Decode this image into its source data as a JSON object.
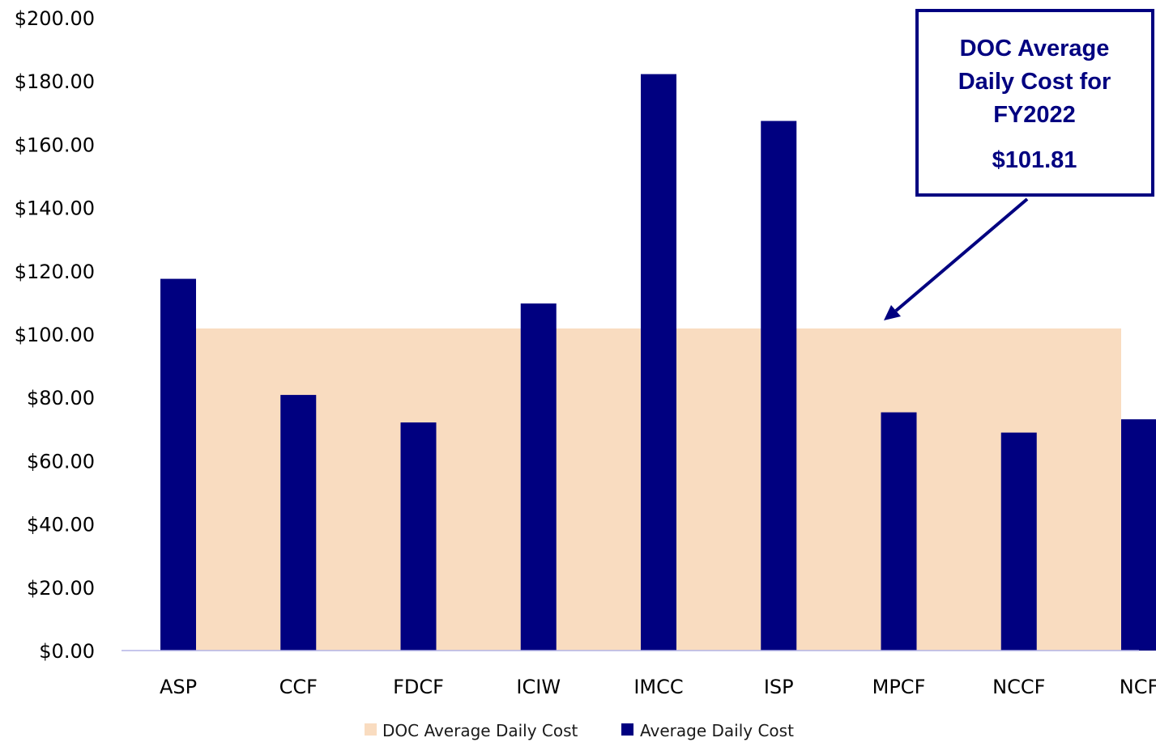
{
  "chart_data": {
    "type": "bar",
    "categories": [
      "ASP",
      "CCF",
      "FDCF",
      "ICIW",
      "IMCC",
      "ISP",
      "MPCF",
      "NCCF",
      "NCF"
    ],
    "series": [
      {
        "name": "Average Daily Cost",
        "color": "#000080",
        "values": [
          117.5,
          80.8,
          72.1,
          109.7,
          182.2,
          167.4,
          75.3,
          68.9,
          73.1
        ]
      }
    ],
    "reference": {
      "name": "DOC Average Daily Cost",
      "value": 101.81,
      "color": "#f9dcc0"
    },
    "title": "",
    "xlabel": "",
    "ylabel": "",
    "ylim": [
      0,
      200
    ],
    "y_ticks": [
      "$0.00",
      "$20.00",
      "$40.00",
      "$60.00",
      "$80.00",
      "$100.00",
      "$120.00",
      "$140.00",
      "$160.00",
      "$180.00",
      "$200.00"
    ],
    "grid": false,
    "legend": {
      "placement": "bottom",
      "entries": [
        "DOC Average Daily Cost",
        "Average Daily Cost"
      ]
    },
    "annotation": {
      "lines": [
        "DOC Average",
        "Daily Cost for",
        "FY2022"
      ],
      "value_label": "$101.81",
      "color": "#000080"
    }
  }
}
